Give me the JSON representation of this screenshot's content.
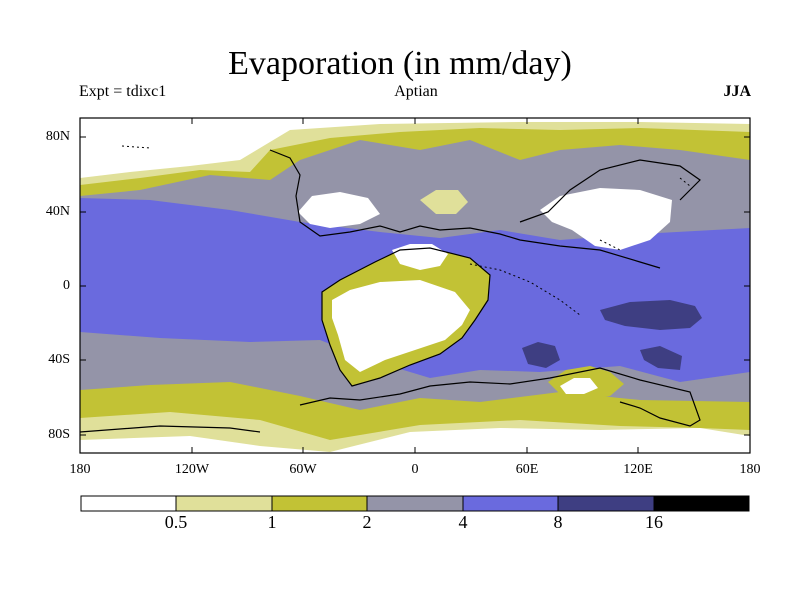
{
  "header": {
    "title": "Evaporation (in mm/day)",
    "experiment": "Expt = tdixc1",
    "stage": "Aptian",
    "season": "JJA"
  },
  "axes": {
    "y_ticks": [
      "80N",
      "40N",
      "0",
      "40S",
      "80S"
    ],
    "x_ticks": [
      "180",
      "120W",
      "60W",
      "0",
      "60E",
      "120E",
      "180"
    ]
  },
  "colorbar": {
    "levels": [
      "0.5",
      "1",
      "2",
      "4",
      "8",
      "16"
    ],
    "colors": [
      "#ffffff",
      "#e0e09a",
      "#c2c235",
      "#9494a8",
      "#6a6ade",
      "#3e3e82",
      "#000000"
    ]
  },
  "map_colors": {
    "white": "#ffffff",
    "pale_olive": "#e0e09a",
    "olive": "#c2c235",
    "gray": "#9494a8",
    "blue": "#6a6ade",
    "navy": "#3e3e82"
  }
}
